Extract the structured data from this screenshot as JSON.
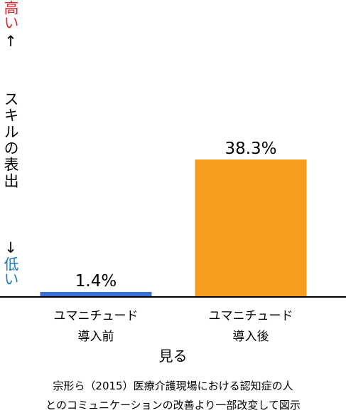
{
  "chart_data": {
    "type": "bar",
    "y_label_high": "高い",
    "y_arrow_up": "↑",
    "y_label": "スキルの表出",
    "y_arrow_down": "↓",
    "y_label_low": "低い",
    "x_label": "見る",
    "categories": [
      "ユマニチュード\n導入前",
      "ユマニチュード\n導入後"
    ],
    "series": [
      {
        "name": null,
        "values": [
          1.4,
          38.3
        ],
        "value_labels": [
          "1.4%",
          "38.3%"
        ],
        "colors": [
          "#3a70d6",
          "#f79c1c"
        ]
      }
    ],
    "source": "宗形ら（2015）医療介護現場における認知症の人\nとのコミュニケーションの改善より一部改変して図示"
  }
}
